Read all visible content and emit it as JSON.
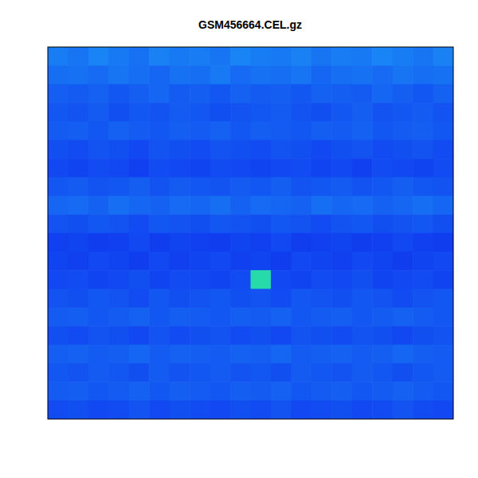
{
  "chart_data": {
    "type": "heatmap",
    "title": "GSM456664.CEL.gz",
    "tick_labels": false,
    "zlim": [
      0,
      1
    ],
    "z": [
      [
        0.56,
        0.54,
        0.58,
        0.55,
        0.53,
        0.57,
        0.55,
        0.56,
        0.54,
        0.58,
        0.56,
        0.55,
        0.57,
        0.54,
        0.56,
        0.55,
        0.58,
        0.56,
        0.54,
        0.57
      ],
      [
        0.52,
        0.53,
        0.51,
        0.54,
        0.52,
        0.5,
        0.53,
        0.52,
        0.55,
        0.51,
        0.53,
        0.52,
        0.54,
        0.5,
        0.52,
        0.53,
        0.51,
        0.54,
        0.52,
        0.53
      ],
      [
        0.48,
        0.47,
        0.49,
        0.46,
        0.48,
        0.5,
        0.47,
        0.48,
        0.46,
        0.49,
        0.47,
        0.48,
        0.46,
        0.49,
        0.48,
        0.47,
        0.5,
        0.48,
        0.46,
        0.49
      ],
      [
        0.46,
        0.45,
        0.47,
        0.44,
        0.46,
        0.45,
        0.47,
        0.46,
        0.44,
        0.45,
        0.46,
        0.47,
        0.45,
        0.44,
        0.46,
        0.48,
        0.45,
        0.46,
        0.47,
        0.45
      ],
      [
        0.47,
        0.48,
        0.46,
        0.49,
        0.47,
        0.46,
        0.48,
        0.47,
        0.49,
        0.46,
        0.48,
        0.47,
        0.46,
        0.48,
        0.47,
        0.49,
        0.46,
        0.47,
        0.48,
        0.46
      ],
      [
        0.44,
        0.43,
        0.45,
        0.44,
        0.42,
        0.45,
        0.44,
        0.43,
        0.45,
        0.44,
        0.43,
        0.45,
        0.44,
        0.42,
        0.44,
        0.45,
        0.43,
        0.44,
        0.45,
        0.43
      ],
      [
        0.42,
        0.41,
        0.43,
        0.42,
        0.4,
        0.43,
        0.42,
        0.41,
        0.43,
        0.42,
        0.41,
        0.42,
        0.43,
        0.41,
        0.42,
        0.4,
        0.43,
        0.42,
        0.41,
        0.43
      ],
      [
        0.46,
        0.47,
        0.45,
        0.46,
        0.48,
        0.45,
        0.47,
        0.46,
        0.45,
        0.47,
        0.46,
        0.48,
        0.45,
        0.46,
        0.47,
        0.45,
        0.46,
        0.48,
        0.46,
        0.45
      ],
      [
        0.5,
        0.51,
        0.49,
        0.52,
        0.5,
        0.49,
        0.51,
        0.5,
        0.52,
        0.49,
        0.51,
        0.5,
        0.49,
        0.52,
        0.5,
        0.51,
        0.49,
        0.5,
        0.52,
        0.5
      ],
      [
        0.45,
        0.44,
        0.46,
        0.45,
        0.43,
        0.46,
        0.45,
        0.44,
        0.46,
        0.45,
        0.44,
        0.46,
        0.45,
        0.43,
        0.45,
        0.46,
        0.44,
        0.45,
        0.46,
        0.44
      ],
      [
        0.4,
        0.41,
        0.39,
        0.4,
        0.42,
        0.39,
        0.41,
        0.4,
        0.39,
        0.41,
        0.4,
        0.42,
        0.39,
        0.4,
        0.41,
        0.39,
        0.4,
        0.42,
        0.4,
        0.39
      ],
      [
        0.41,
        0.4,
        0.42,
        0.41,
        0.39,
        0.42,
        0.4,
        0.41,
        0.42,
        0.4,
        0.41,
        0.39,
        0.42,
        0.41,
        0.4,
        0.42,
        0.41,
        0.39,
        0.41,
        0.42
      ],
      [
        0.42,
        0.43,
        0.41,
        0.42,
        0.44,
        0.41,
        0.43,
        0.42,
        0.41,
        0.43,
        0.82,
        0.42,
        0.41,
        0.43,
        0.42,
        0.44,
        0.41,
        0.42,
        0.43,
        0.41
      ],
      [
        0.45,
        0.44,
        0.46,
        0.45,
        0.43,
        0.46,
        0.44,
        0.45,
        0.46,
        0.44,
        0.45,
        0.43,
        0.46,
        0.45,
        0.44,
        0.46,
        0.45,
        0.43,
        0.45,
        0.46
      ],
      [
        0.47,
        0.48,
        0.46,
        0.47,
        0.49,
        0.46,
        0.48,
        0.47,
        0.46,
        0.48,
        0.47,
        0.49,
        0.46,
        0.47,
        0.48,
        0.46,
        0.47,
        0.49,
        0.47,
        0.46
      ],
      [
        0.44,
        0.43,
        0.45,
        0.44,
        0.42,
        0.45,
        0.43,
        0.44,
        0.45,
        0.43,
        0.44,
        0.42,
        0.45,
        0.44,
        0.43,
        0.45,
        0.44,
        0.42,
        0.44,
        0.45
      ],
      [
        0.48,
        0.49,
        0.47,
        0.48,
        0.5,
        0.47,
        0.49,
        0.48,
        0.47,
        0.49,
        0.48,
        0.5,
        0.47,
        0.48,
        0.49,
        0.47,
        0.48,
        0.5,
        0.48,
        0.47
      ],
      [
        0.46,
        0.45,
        0.47,
        0.46,
        0.44,
        0.47,
        0.45,
        0.46,
        0.47,
        0.45,
        0.46,
        0.44,
        0.47,
        0.46,
        0.45,
        0.47,
        0.46,
        0.44,
        0.46,
        0.47
      ],
      [
        0.47,
        0.48,
        0.46,
        0.47,
        0.49,
        0.46,
        0.48,
        0.47,
        0.46,
        0.48,
        0.47,
        0.49,
        0.46,
        0.47,
        0.48,
        0.46,
        0.47,
        0.49,
        0.47,
        0.46
      ],
      [
        0.43,
        0.44,
        0.42,
        0.43,
        0.45,
        0.42,
        0.44,
        0.43,
        0.42,
        0.44,
        0.43,
        0.45,
        0.42,
        0.43,
        0.44,
        0.42,
        0.43,
        0.45,
        0.43,
        0.42
      ]
    ]
  }
}
